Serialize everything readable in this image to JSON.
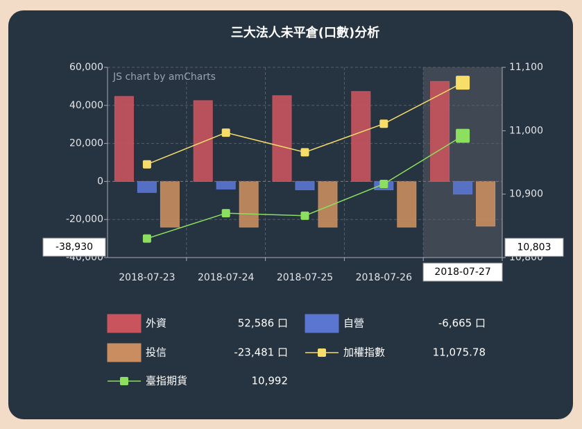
{
  "chart_data": {
    "type": "bar-line",
    "title": "三大法人未平倉(口數)分析",
    "watermark": "JS chart by amCharts",
    "categories": [
      "2018-07-23",
      "2018-07-24",
      "2018-07-25",
      "2018-07-26",
      "2018-07-27"
    ],
    "series": [
      {
        "name": "外資",
        "type": "bar",
        "color": "#c9545e",
        "values": [
          44700,
          42500,
          45100,
          47300,
          52586
        ],
        "value_labels": [
          null,
          null,
          null,
          null,
          "52,586 口"
        ]
      },
      {
        "name": "自營",
        "type": "bar",
        "color": "#5a76d1",
        "values": [
          -5800,
          -4000,
          -4400,
          -4400,
          -6665
        ],
        "value_labels": [
          null,
          null,
          null,
          null,
          "-6,665 口"
        ]
      },
      {
        "name": "投信",
        "type": "bar",
        "color": "#c98d5f",
        "values": [
          -24000,
          -24000,
          -24000,
          -24000,
          -23481
        ],
        "value_labels": [
          null,
          null,
          null,
          null,
          "-23,481 口"
        ]
      },
      {
        "name": "加權指數",
        "type": "line",
        "axis": "y2",
        "color": "#f7de6b",
        "values": [
          10947,
          10997,
          10966,
          11011,
          11075.78
        ],
        "value_labels": [
          null,
          null,
          null,
          null,
          "11,075.78"
        ]
      },
      {
        "name": "臺指期貨",
        "type": "line",
        "axis": "y2",
        "color": "#8de05f",
        "values": [
          10830,
          10870,
          10866,
          10916,
          10992
        ],
        "value_labels": [
          null,
          null,
          null,
          null,
          "10,992"
        ]
      }
    ],
    "ylim": [
      -40000,
      60000
    ],
    "yticks": [
      {
        "value": 60000,
        "label": "60,000"
      },
      {
        "value": 40000,
        "label": "40,000"
      },
      {
        "value": 20000,
        "label": "20,000"
      },
      0,
      {
        "value": -20000,
        "label": "-20,000"
      },
      {
        "value": -40000,
        "label": "-40,000"
      }
    ],
    "y2lim": [
      10800,
      11100
    ],
    "y2ticks": [
      {
        "value": 11100,
        "label": "11,100"
      },
      {
        "value": 11000,
        "label": "11,000"
      },
      {
        "value": 10900,
        "label": "10,900"
      },
      {
        "value": 10800,
        "label": "10,800"
      }
    ],
    "grid": true,
    "cursor": {
      "x_label": "2018-07-27",
      "y": {
        "value": -38930,
        "label": "-38,930"
      },
      "y2": {
        "value": 10803,
        "label": "10,803"
      }
    }
  }
}
